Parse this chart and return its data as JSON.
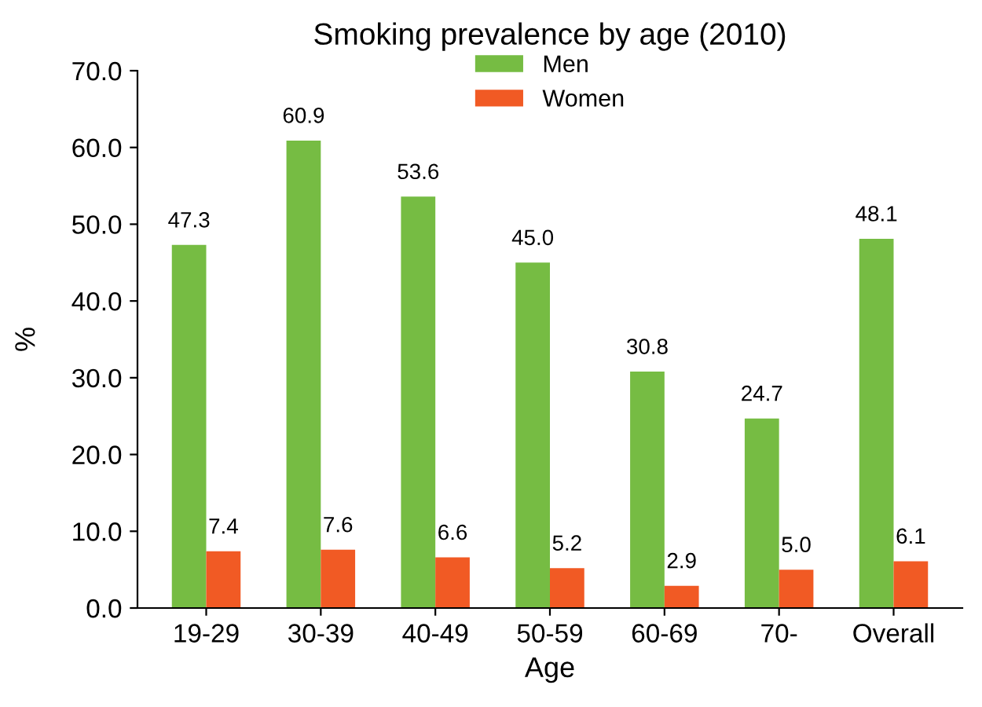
{
  "chart_data": {
    "type": "bar",
    "title": "Smoking prevalence by age (2010)",
    "xlabel": "Age",
    "ylabel": "%",
    "categories": [
      "19-29",
      "30-39",
      "40-49",
      "50-59",
      "60-69",
      "70-",
      "Overall"
    ],
    "series": [
      {
        "name": "Men",
        "color": "#76bc43",
        "values": [
          47.3,
          60.9,
          53.6,
          45.0,
          30.8,
          24.7,
          48.1
        ],
        "value_labels": [
          "47.3",
          "60.9",
          "53.6",
          "45.0",
          "30.8",
          "24.7",
          "48.1"
        ]
      },
      {
        "name": "Women",
        "color": "#f15a24",
        "values": [
          7.4,
          7.6,
          6.6,
          5.2,
          2.9,
          5.0,
          6.1
        ],
        "value_labels": [
          "7.4",
          "7.6",
          "6.6",
          "5.2",
          "2.9",
          "5.0",
          "6.1"
        ]
      }
    ],
    "ylim": [
      0,
      70
    ],
    "yticks": [
      {
        "value": 0,
        "label": "0.0"
      },
      {
        "value": 10,
        "label": "10.0"
      },
      {
        "value": 20,
        "label": "20.0"
      },
      {
        "value": 30,
        "label": "30.0"
      },
      {
        "value": 40,
        "label": "40.0"
      },
      {
        "value": 50,
        "label": "50.0"
      },
      {
        "value": 60,
        "label": "60.0"
      },
      {
        "value": 70,
        "label": "70.0"
      }
    ],
    "legend": "top"
  }
}
